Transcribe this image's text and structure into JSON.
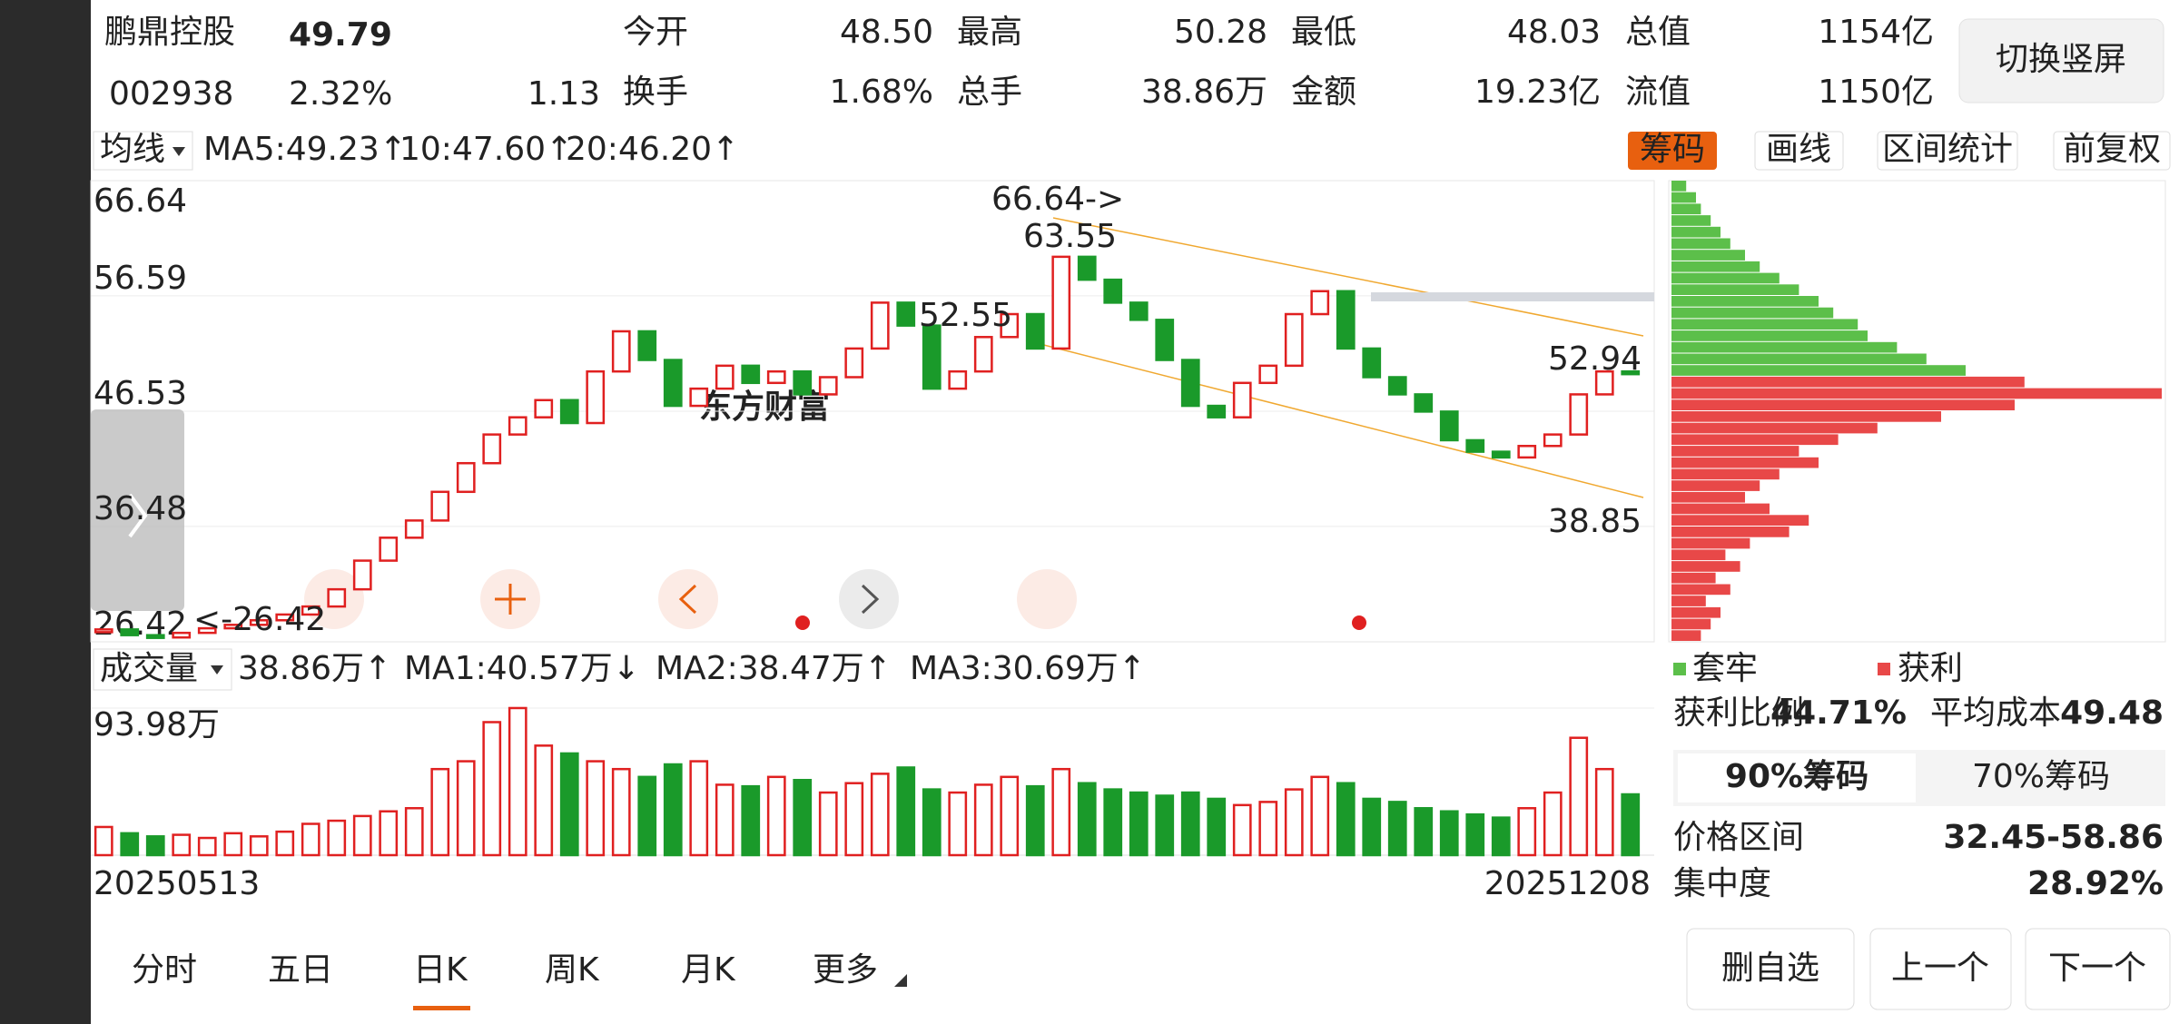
{
  "header": {
    "name": "鹏鼎控股",
    "price": 49.79,
    "code": "002938",
    "change_pct": "2.32%",
    "change": 1.13,
    "fields": [
      {
        "label": "今开",
        "value": "48.50"
      },
      {
        "label": "最高",
        "value": "50.28"
      },
      {
        "label": "最低",
        "value": "48.03"
      },
      {
        "label": "总值",
        "value": "1154亿"
      },
      {
        "label": "换手",
        "value": "1.68%"
      },
      {
        "label": "总手",
        "value": "38.86万"
      },
      {
        "label": "金额",
        "value": "19.23亿"
      },
      {
        "label": "流值",
        "value": "1150亿"
      }
    ],
    "button": "切换竖屏"
  },
  "ma_bar": {
    "selector": "均线",
    "items": [
      "MA5:49.23↑",
      "10:47.60↑",
      "20:46.20↑"
    ],
    "tools": [
      "筹码",
      "画线",
      "区间统计",
      "前复权"
    ]
  },
  "kline": {
    "ylim": [
      26.42,
      66.64
    ],
    "yticks": [
      66.64,
      56.59,
      46.53,
      36.48,
      26.42
    ],
    "values": [
      27.5,
      27.0,
      26.8,
      27.2,
      27.6,
      27.9,
      28.3,
      28.8,
      29.5,
      31.0,
      33.5,
      35.5,
      37.0,
      39.5,
      42.0,
      44.5,
      46.0,
      47.5,
      45.5,
      50.0,
      53.5,
      51.0,
      47.0,
      48.5,
      50.5,
      49.0,
      50.0,
      48.0,
      49.5,
      52.0,
      56.0,
      54.0,
      48.5,
      50.0,
      53.0,
      55.0,
      52.0,
      60.0,
      58.0,
      56.0,
      54.5,
      51.0,
      47.0,
      46.0,
      49.0,
      50.5,
      55.0,
      57.0,
      52.0,
      49.5,
      48.0,
      46.5,
      44.0,
      43.0,
      42.5,
      43.5,
      44.5,
      48.0,
      50.0,
      49.79
    ],
    "annotations": [
      "66.64->",
      "63.55",
      "52.55",
      "52.94",
      "38.85",
      "<-26.42"
    ],
    "watermark": "东方财富"
  },
  "volume": {
    "selector": "成交量",
    "items": [
      "38.86万↑",
      "MA1:40.57万↓",
      "MA2:38.47万↑",
      "MA3:30.69万↑"
    ],
    "ylim": [
      0,
      93.98
    ],
    "yticks": [
      {
        "value": 93.98,
        "label": "93.98万"
      }
    ],
    "values": [
      18,
      14,
      12,
      13,
      11,
      14,
      12,
      15,
      20,
      22,
      25,
      28,
      30,
      55,
      60,
      85,
      94,
      70,
      65,
      60,
      55,
      50,
      58,
      60,
      45,
      44,
      50,
      48,
      40,
      46,
      52,
      56,
      42,
      40,
      45,
      50,
      44,
      55,
      46,
      42,
      40,
      38,
      40,
      36,
      32,
      34,
      42,
      50,
      46,
      36,
      34,
      30,
      28,
      26,
      24,
      30,
      40,
      75,
      55,
      38.86
    ],
    "dates": [
      "20250513",
      "20251208"
    ]
  },
  "chips": {
    "legend": [
      "套牢",
      "获利"
    ],
    "values": [
      6,
      8,
      10,
      7,
      12,
      9,
      14,
      11,
      16,
      24,
      28,
      20,
      15,
      18,
      22,
      30,
      26,
      34,
      42,
      55,
      70,
      100,
      72,
      60,
      52,
      46,
      40,
      38,
      33,
      30,
      26,
      22,
      18,
      15,
      12,
      10,
      8,
      6,
      5,
      3
    ],
    "stats": [
      {
        "label": "获利比例",
        "value": "44.71%"
      },
      {
        "label": "平均成本",
        "value": 49.48
      },
      {
        "label": "价格区间",
        "value": "32.45-58.86"
      },
      {
        "label": "集中度",
        "value": "28.92%"
      }
    ],
    "tabs": [
      "90%筹码",
      "70%筹码"
    ]
  },
  "bottom": {
    "tabs": [
      "分时",
      "五日",
      "日K",
      "周K",
      "月K",
      "更多"
    ],
    "actions": [
      "删自选",
      "上一个",
      "下一个"
    ]
  }
}
